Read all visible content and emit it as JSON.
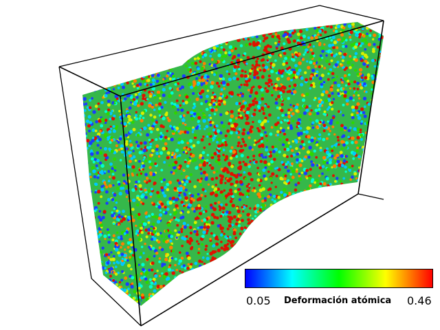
{
  "colorbar": {
    "min_label": "0.05",
    "max_label": "0.46",
    "title": "Deformación atómica",
    "colors": [
      "#0000ff",
      "#00ffff",
      "#00ff00",
      "#ffff00",
      "#ff0000"
    ]
  },
  "scene": {
    "particle_palette": [
      "#1a3cff",
      "#00c8ff",
      "#00ffd0",
      "#2bd800",
      "#d8ef00",
      "#ff8000",
      "#e01000"
    ],
    "box_edge_color": "#000000"
  }
}
